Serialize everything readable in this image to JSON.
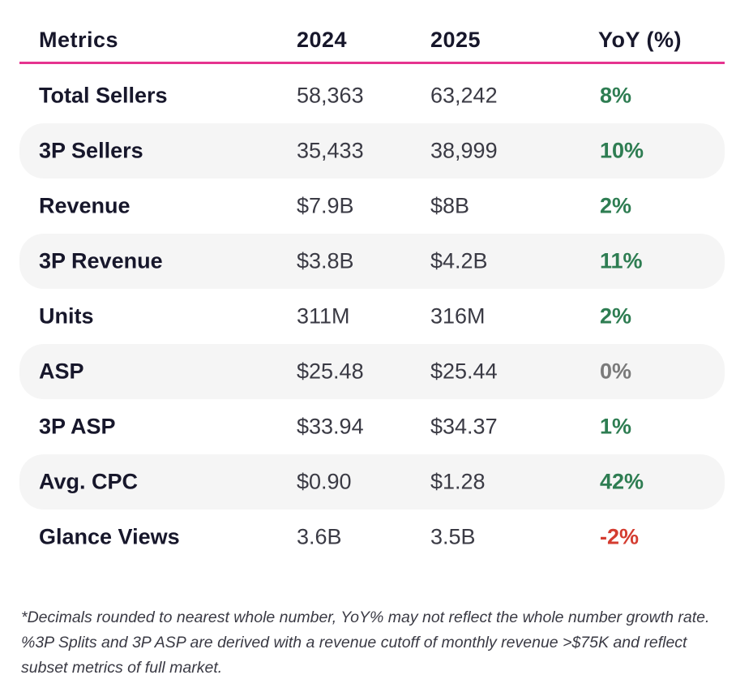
{
  "table": {
    "headers": {
      "metric": "Metrics",
      "y2024": "2024",
      "y2025": "2025",
      "yoy": "YoY (%)"
    },
    "rows": [
      {
        "metric": "Total Sellers",
        "y2024": "58,363",
        "y2025": "63,242",
        "yoy": "8%",
        "trend": "positive"
      },
      {
        "metric": "3P Sellers",
        "y2024": "35,433",
        "y2025": "38,999",
        "yoy": "10%",
        "trend": "positive"
      },
      {
        "metric": "Revenue",
        "y2024": "$7.9B",
        "y2025": "$8B",
        "yoy": "2%",
        "trend": "positive"
      },
      {
        "metric": "3P Revenue",
        "y2024": "$3.8B",
        "y2025": "$4.2B",
        "yoy": "11%",
        "trend": "positive"
      },
      {
        "metric": "Units",
        "y2024": "311M",
        "y2025": "316M",
        "yoy": "2%",
        "trend": "positive"
      },
      {
        "metric": "ASP",
        "y2024": "$25.48",
        "y2025": "$25.44",
        "yoy": "0%",
        "trend": "neutral"
      },
      {
        "metric": "3P ASP",
        "y2024": "$33.94",
        "y2025": "$34.37",
        "yoy": "1%",
        "trend": "positive"
      },
      {
        "metric": "Avg. CPC",
        "y2024": "$0.90",
        "y2025": "$1.28",
        "yoy": "42%",
        "trend": "positive"
      },
      {
        "metric": "Glance Views",
        "y2024": "3.6B",
        "y2025": "3.5B",
        "yoy": "-2%",
        "trend": "negative"
      }
    ]
  },
  "footnote": "*Decimals rounded to nearest whole number, YoY% may not reflect the whole number growth rate. %3P Splits and 3P ASP are derived with a revenue cutoff of monthly revenue >$75K and reflect subset metrics  of full market.",
  "colors": {
    "header_rule": "#e5338f",
    "positive": "#2e7d52",
    "neutral": "#7a7a7a",
    "negative": "#d43c30",
    "row_shade": "#f5f5f5"
  }
}
